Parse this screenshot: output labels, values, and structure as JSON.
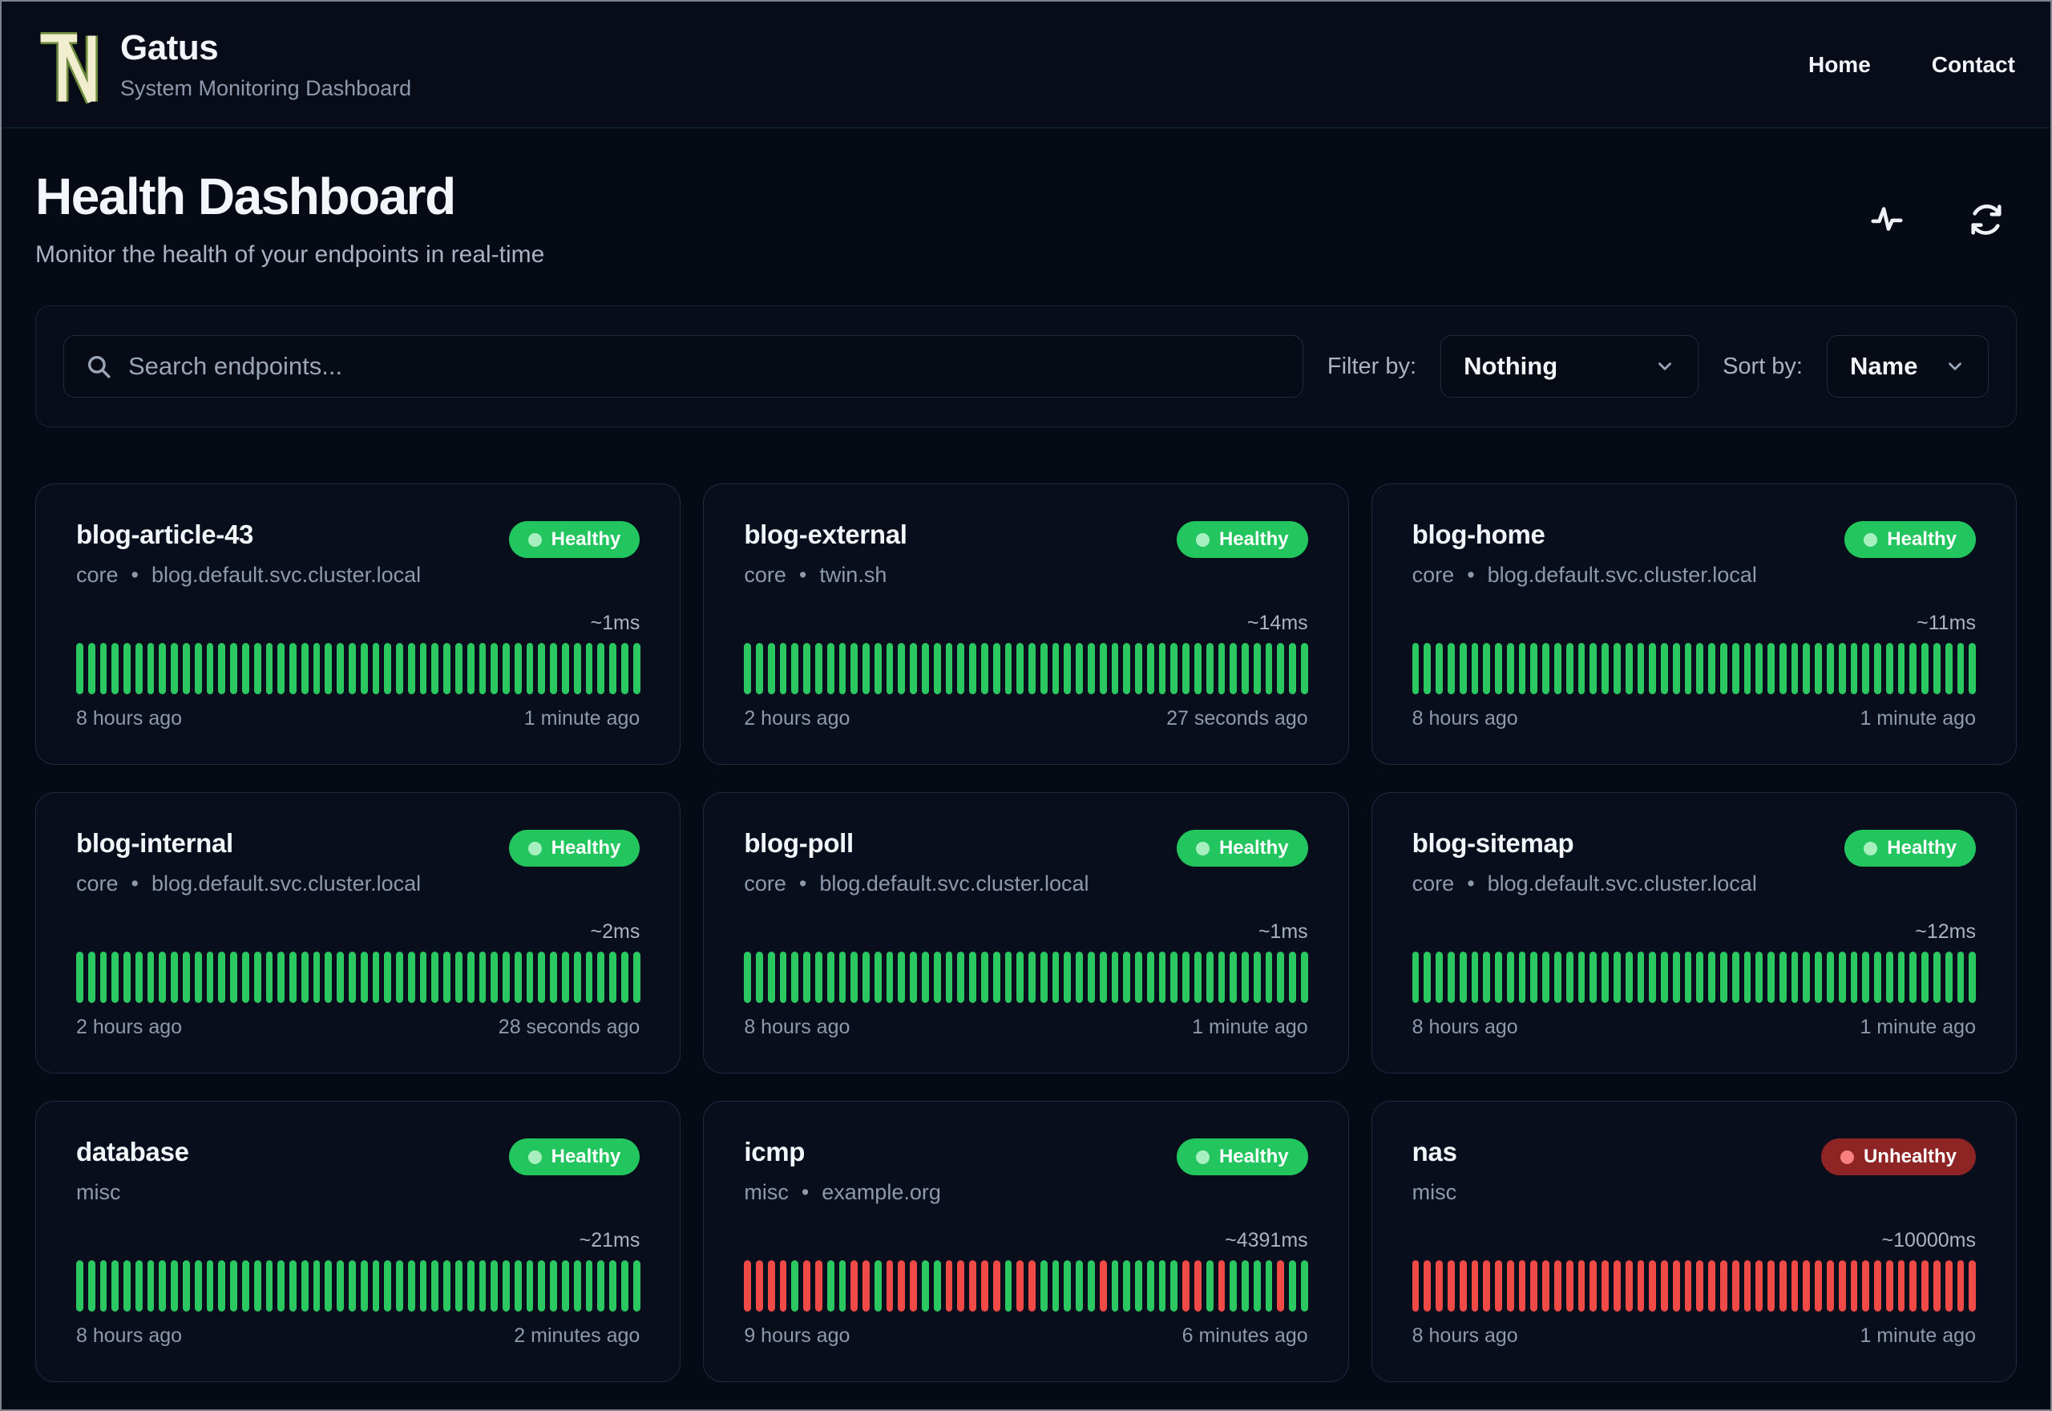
{
  "brand": {
    "name": "Gatus",
    "subtitle": "System Monitoring Dashboard"
  },
  "nav": {
    "home": "Home",
    "contact": "Contact"
  },
  "page": {
    "title": "Health Dashboard",
    "subtitle": "Monitor the health of your endpoints in real-time"
  },
  "toolbar": {
    "search_placeholder": "Search endpoints...",
    "filter_label": "Filter by:",
    "filter_value": "Nothing",
    "sort_label": "Sort by:",
    "sort_value": "Name"
  },
  "meta": {
    "separator": "•"
  },
  "colors": {
    "healthy_badge": "#22c55e",
    "unhealthy_badge": "#8e2424",
    "bar_up": "#2bc862",
    "bar_down": "#ef4a46",
    "logo_cream": "#f1edcf",
    "logo_olive": "#6d8c3e"
  },
  "endpoints": [
    {
      "name": "blog-article-43",
      "group": "core",
      "host": "blog.default.svc.cluster.local",
      "status": "Healthy",
      "latency": "~1ms",
      "from": "8 hours ago",
      "to": "1 minute ago",
      "bars": "GGGGGGGGGGGGGGGGGGGGGGGGGGGGGGGGGGGGGGGGGGGGGGGG"
    },
    {
      "name": "blog-external",
      "group": "core",
      "host": "twin.sh",
      "status": "Healthy",
      "latency": "~14ms",
      "from": "2 hours ago",
      "to": "27 seconds ago",
      "bars": "GGGGGGGGGGGGGGGGGGGGGGGGGGGGGGGGGGGGGGGGGGGGGGGG"
    },
    {
      "name": "blog-home",
      "group": "core",
      "host": "blog.default.svc.cluster.local",
      "status": "Healthy",
      "latency": "~11ms",
      "from": "8 hours ago",
      "to": "1 minute ago",
      "bars": "GGGGGGGGGGGGGGGGGGGGGGGGGGGGGGGGGGGGGGGGGGGGGGGG"
    },
    {
      "name": "blog-internal",
      "group": "core",
      "host": "blog.default.svc.cluster.local",
      "status": "Healthy",
      "latency": "~2ms",
      "from": "2 hours ago",
      "to": "28 seconds ago",
      "bars": "GGGGGGGGGGGGGGGGGGGGGGGGGGGGGGGGGGGGGGGGGGGGGGGG"
    },
    {
      "name": "blog-poll",
      "group": "core",
      "host": "blog.default.svc.cluster.local",
      "status": "Healthy",
      "latency": "~1ms",
      "from": "8 hours ago",
      "to": "1 minute ago",
      "bars": "GGGGGGGGGGGGGGGGGGGGGGGGGGGGGGGGGGGGGGGGGGGGGGGG"
    },
    {
      "name": "blog-sitemap",
      "group": "core",
      "host": "blog.default.svc.cluster.local",
      "status": "Healthy",
      "latency": "~12ms",
      "from": "8 hours ago",
      "to": "1 minute ago",
      "bars": "GGGGGGGGGGGGGGGGGGGGGGGGGGGGGGGGGGGGGGGGGGGGGGGG"
    },
    {
      "name": "database",
      "group": "misc",
      "host": "",
      "status": "Healthy",
      "latency": "~21ms",
      "from": "8 hours ago",
      "to": "2 minutes ago",
      "bars": "GGGGGGGGGGGGGGGGGGGGGGGGGGGGGGGGGGGGGGGGGGGGGGGG"
    },
    {
      "name": "icmp",
      "group": "misc",
      "host": "example.org",
      "status": "Healthy",
      "latency": "~4391ms",
      "from": "9 hours ago",
      "to": "6 minutes ago",
      "bars": "RRRRGRRGGRRGRRRGGRRRRRGRRGGGGGRGGGGGGRRGRGGGGRGG"
    },
    {
      "name": "nas",
      "group": "misc",
      "host": "",
      "status": "Unhealthy",
      "latency": "~10000ms",
      "from": "8 hours ago",
      "to": "1 minute ago",
      "bars": "RRRRRRRRRRRRRRRRRRRRRRRRRRRRRRRRRRRRRRRRRRRRRRRR"
    }
  ]
}
